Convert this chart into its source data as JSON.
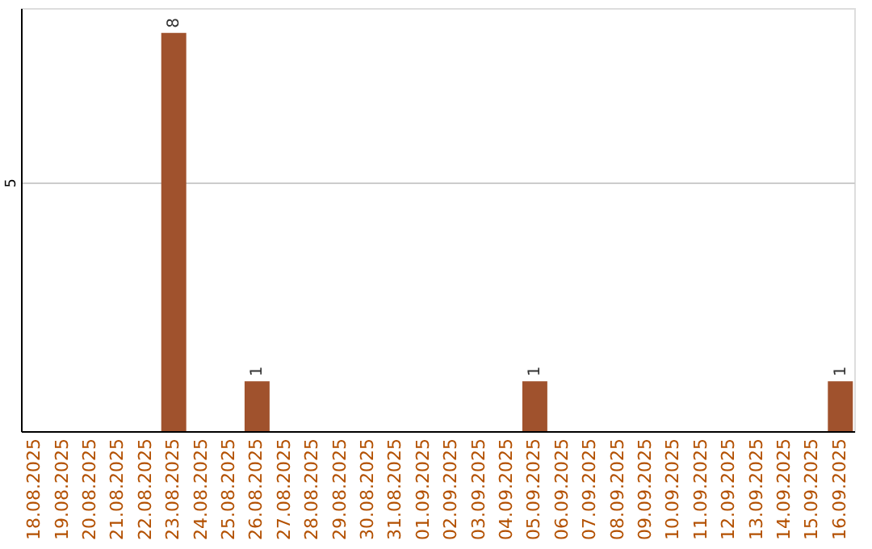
{
  "chart_data": {
    "type": "bar",
    "categories": [
      "18.08.2025",
      "19.08.2025",
      "20.08.2025",
      "21.08.2025",
      "22.08.2025",
      "23.08.2025",
      "24.08.2025",
      "25.08.2025",
      "26.08.2025",
      "27.08.2025",
      "28.08.2025",
      "29.08.2025",
      "30.08.2025",
      "31.08.2025",
      "01.09.2025",
      "02.09.2025",
      "03.09.2025",
      "04.09.2025",
      "05.09.2025",
      "06.09.2025",
      "07.09.2025",
      "08.09.2025",
      "09.09.2025",
      "10.09.2025",
      "11.09.2025",
      "12.09.2025",
      "13.09.2025",
      "14.09.2025",
      "15.09.2025",
      "16.09.2025"
    ],
    "values": [
      0,
      0,
      0,
      0,
      0,
      8,
      0,
      0,
      1,
      0,
      0,
      0,
      0,
      0,
      0,
      0,
      0,
      0,
      1,
      0,
      0,
      0,
      0,
      0,
      0,
      0,
      0,
      0,
      0,
      1
    ],
    "value_labels": [
      null,
      null,
      null,
      null,
      null,
      "8",
      null,
      null,
      "1",
      null,
      null,
      null,
      null,
      null,
      null,
      null,
      null,
      null,
      "1",
      null,
      null,
      null,
      null,
      null,
      null,
      null,
      null,
      null,
      null,
      "1"
    ],
    "color": "#a0522d",
    "ylim": [
      0,
      8.5
    ],
    "yticks": [
      5
    ],
    "grid": "y"
  }
}
